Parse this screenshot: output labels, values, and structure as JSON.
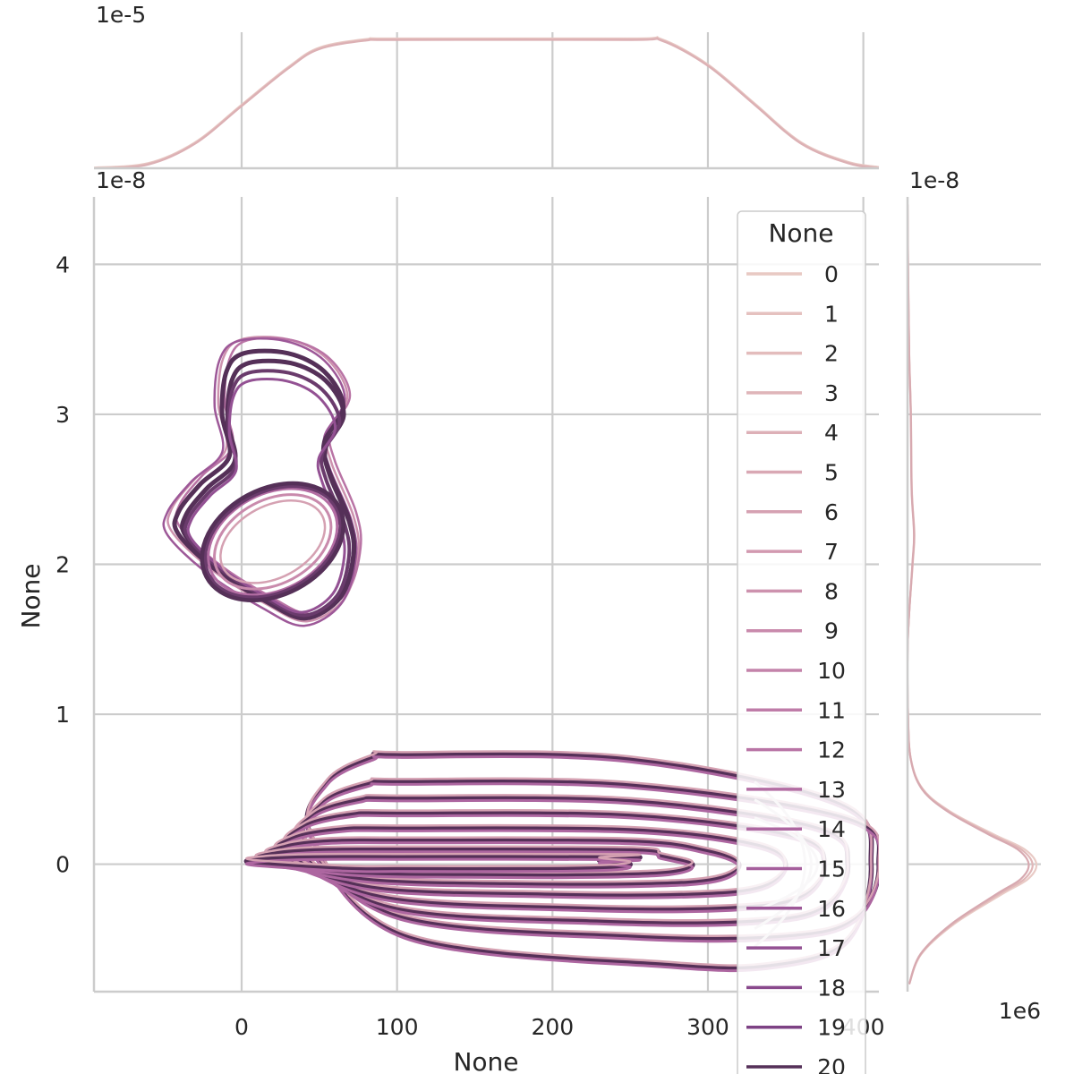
{
  "chart_data": {
    "type": "kde-joint",
    "title": "",
    "xlabel": "None",
    "ylabel": "None",
    "x_ticks": [
      0,
      100,
      200,
      300,
      400
    ],
    "x_tick_labels": [
      "0",
      "100",
      "200",
      "300",
      "400"
    ],
    "xlim": [
      -95,
      410
    ],
    "y_ticks": [
      0,
      1,
      2,
      3,
      4
    ],
    "y_tick_labels": [
      "0",
      "1",
      "2",
      "3",
      "4"
    ],
    "y_offset": "1e-8",
    "ylim": [
      -0.85,
      4.45
    ],
    "top_marginal": {
      "offset": "1e-5",
      "curve": [
        [
          -95,
          0.005
        ],
        [
          -60,
          0.04
        ],
        [
          -30,
          0.2
        ],
        [
          0,
          0.49
        ],
        [
          30,
          0.78
        ],
        [
          50,
          0.93
        ],
        [
          80,
          0.995
        ],
        [
          100,
          1.0
        ],
        [
          250,
          1.0
        ],
        [
          270,
          0.995
        ],
        [
          300,
          0.8
        ],
        [
          330,
          0.5
        ],
        [
          360,
          0.2
        ],
        [
          390,
          0.05
        ],
        [
          410,
          0.01
        ]
      ]
    },
    "right_marginal": {
      "offset": "1e-8",
      "scale_label": "1e6",
      "peak_density": 0.75,
      "curve": [
        [
          -0.8,
          0.01
        ],
        [
          -0.6,
          0.08
        ],
        [
          -0.4,
          0.27
        ],
        [
          -0.2,
          0.55
        ],
        [
          -0.1,
          0.7
        ],
        [
          0.0,
          0.75
        ],
        [
          0.1,
          0.68
        ],
        [
          0.2,
          0.5
        ],
        [
          0.35,
          0.25
        ],
        [
          0.5,
          0.09
        ],
        [
          0.7,
          0.02
        ],
        [
          1.0,
          0.003
        ],
        [
          1.5,
          0.002
        ],
        [
          2.0,
          0.03
        ],
        [
          2.2,
          0.04
        ],
        [
          2.5,
          0.025
        ],
        [
          3.0,
          0.02
        ],
        [
          3.4,
          0.01
        ],
        [
          4.0,
          0.003
        ],
        [
          4.4,
          0.0
        ]
      ]
    },
    "series_names": [
      "0",
      "1",
      "2",
      "3",
      "4",
      "5",
      "6",
      "7",
      "8",
      "9",
      "10",
      "11",
      "12",
      "13",
      "14",
      "15",
      "16",
      "17",
      "18",
      "19",
      "20"
    ],
    "series_colors": [
      "#e8c9c3",
      "#e5c1bf",
      "#e3bcbc",
      "#dfb5b9",
      "#ddb0b7",
      "#d9a8b4",
      "#d5a1b2",
      "#d299b0",
      "#cd92ae",
      "#c98aac",
      "#c483aa",
      "#bf7ca8",
      "#b974a5",
      "#b36da3",
      "#ad66a0",
      "#a55f9c",
      "#9d5898",
      "#935193",
      "#89498c",
      "#7d4284",
      "#553058"
    ],
    "lower_cluster": {
      "center": [
        150,
        0.0
      ],
      "rings": [
        [
          405,
          0.73,
          45,
          0.68,
          275,
          0.67
        ],
        [
          410,
          0.55,
          42,
          0.5,
          250,
          0.48
        ],
        [
          390,
          0.44,
          36,
          0.41,
          230,
          0.38
        ],
        [
          375,
          0.34,
          30,
          0.31,
          215,
          0.29
        ],
        [
          350,
          0.24,
          24,
          0.22,
          195,
          0.2
        ],
        [
          320,
          0.16,
          18,
          0.14,
          170,
          0.13
        ],
        [
          290,
          0.1,
          12,
          0.08,
          145,
          0.07
        ],
        [
          250,
          0.05,
          6,
          0.04,
          100,
          0.03
        ]
      ]
    },
    "upper_cluster": {
      "outer_centroid": [
        25,
        2.6
      ],
      "inner_center": [
        20,
        2.15
      ]
    },
    "legend": {
      "title": "None",
      "entries": [
        "0",
        "1",
        "2",
        "3",
        "4",
        "5",
        "6",
        "7",
        "8",
        "9",
        "10",
        "11",
        "12",
        "13",
        "14",
        "15",
        "16",
        "17",
        "18",
        "19",
        "20"
      ]
    }
  }
}
